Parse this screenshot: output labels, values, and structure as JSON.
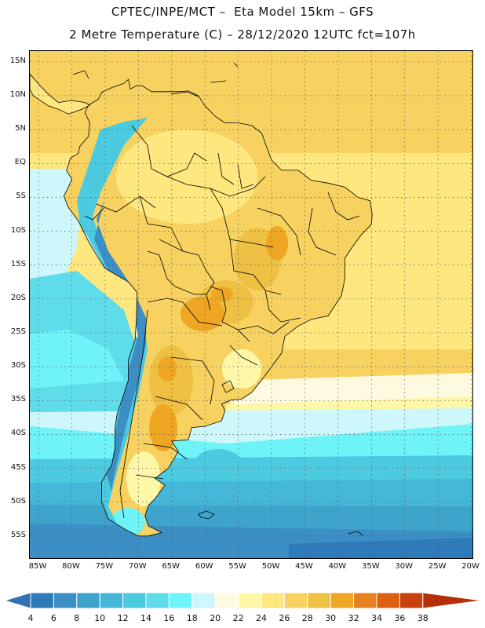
{
  "header": {
    "line1": "CPTEC/INPE/MCT –  Eta Model 15km – GFS",
    "line2": "2 Metre Temperature (C) – 28/12/2020 12UTC fct=107h"
  },
  "map": {
    "lat_labels": [
      "15N",
      "10N",
      "5N",
      "EQ",
      "5S",
      "10S",
      "15S",
      "20S",
      "25S",
      "30S",
      "35S",
      "40S",
      "45S",
      "50S",
      "55S"
    ],
    "lon_labels": [
      "85W",
      "80W",
      "75W",
      "70W",
      "65W",
      "60W",
      "55W",
      "50W",
      "45W",
      "40W",
      "35W",
      "30W",
      "25W",
      "20W"
    ],
    "extent": {
      "lon_min": -86.3,
      "lon_max": -19.6,
      "lat_min": -58.5,
      "lat_max": 16.6
    }
  },
  "colorbar": {
    "labels": [
      "4",
      "6",
      "8",
      "10",
      "12",
      "14",
      "16",
      "18",
      "20",
      "22",
      "24",
      "26",
      "28",
      "30",
      "32",
      "34",
      "36",
      "38"
    ],
    "colors": [
      "#3470b3",
      "#2f7ab9",
      "#3b8fc4",
      "#3ea4cc",
      "#45b7d9",
      "#4ccbe0",
      "#5fdcea",
      "#6ef3f8",
      "#cdf7fb",
      "#fefae0",
      "#fef7a8",
      "#fee77f",
      "#f7d261",
      "#eec043",
      "#efa623",
      "#e68120",
      "#dd5f12",
      "#c8400c",
      "#b5300a"
    ]
  }
}
